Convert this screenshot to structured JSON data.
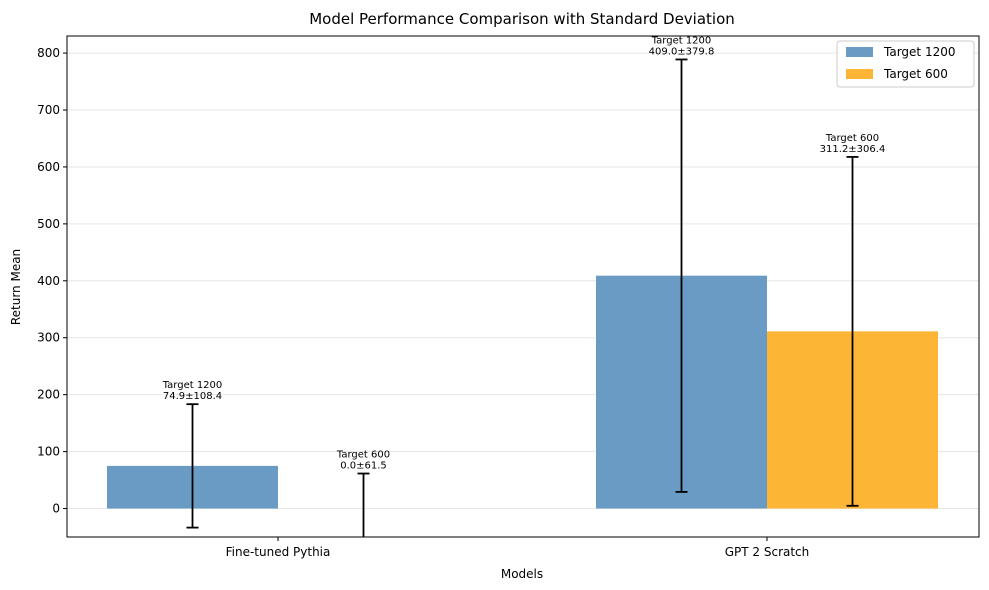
{
  "chart_data": {
    "type": "bar",
    "title": "Model Performance Comparison with Standard Deviation",
    "xlabel": "Models",
    "ylabel": "Return Mean",
    "categories": [
      "Fine-tuned Pythia",
      "GPT 2 Scratch"
    ],
    "ylim": [
      -50,
      830
    ],
    "yticks": [
      0,
      100,
      200,
      300,
      400,
      500,
      600,
      700,
      800
    ],
    "grid": "y",
    "legend_position": "top-right",
    "series": [
      {
        "name": "Target 1200",
        "color": "#6a9bc4",
        "values": [
          74.9,
          409.0
        ],
        "std": [
          108.4,
          379.8
        ],
        "labels": [
          [
            "Target 1200",
            "74.9±108.4"
          ],
          [
            "Target 1200",
            "409.0±379.8"
          ]
        ]
      },
      {
        "name": "Target 600",
        "color": "#fdb535",
        "values": [
          0.0,
          311.2
        ],
        "std": [
          61.5,
          306.4
        ],
        "labels": [
          [
            "Target 600",
            "0.0±61.5"
          ],
          [
            "Target 600",
            "311.2±306.4"
          ]
        ]
      }
    ]
  }
}
